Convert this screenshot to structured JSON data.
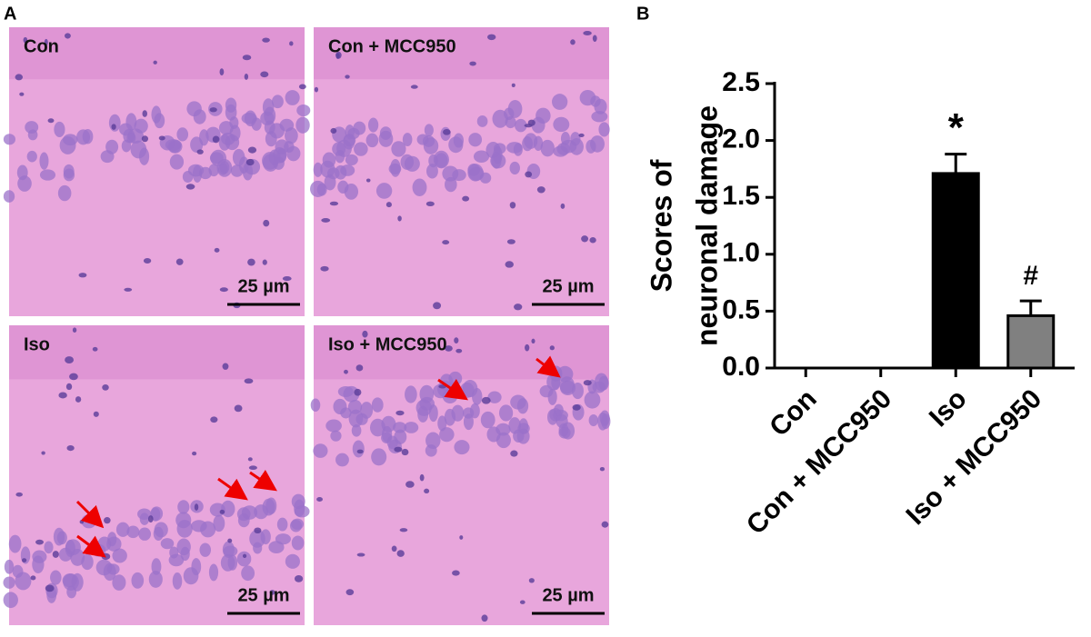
{
  "panel_a": {
    "label": "A",
    "images": [
      {
        "label": "Con",
        "scale_bar": "25 µm"
      },
      {
        "label": "Con + MCC950",
        "scale_bar": "25 µm"
      },
      {
        "label": "Iso",
        "scale_bar": "25 µm"
      },
      {
        "label": "Iso + MCC950",
        "scale_bar": "25 µm"
      }
    ]
  },
  "panel_b": {
    "label": "B"
  },
  "chart_data": {
    "type": "bar",
    "y_label": [
      "Scores of",
      "neuronal damage"
    ],
    "categories": [
      "Con",
      "Con + MCC950",
      "Iso",
      "Iso + MCC950"
    ],
    "values": [
      0,
      0,
      1.71,
      0.46
    ],
    "errors": [
      0,
      0,
      0.17,
      0.13
    ],
    "colors": [
      "#000000",
      "#000000",
      "#000000",
      "#808080"
    ],
    "annotations": [
      null,
      null,
      "*",
      "#"
    ],
    "ylim": [
      0,
      2.5
    ],
    "yticks": [
      {
        "value": 0,
        "label": "0.0"
      },
      0.5,
      {
        "value": 1,
        "label": "1.0"
      },
      1.5,
      {
        "value": 2,
        "label": "2.0"
      },
      2.5
    ]
  }
}
